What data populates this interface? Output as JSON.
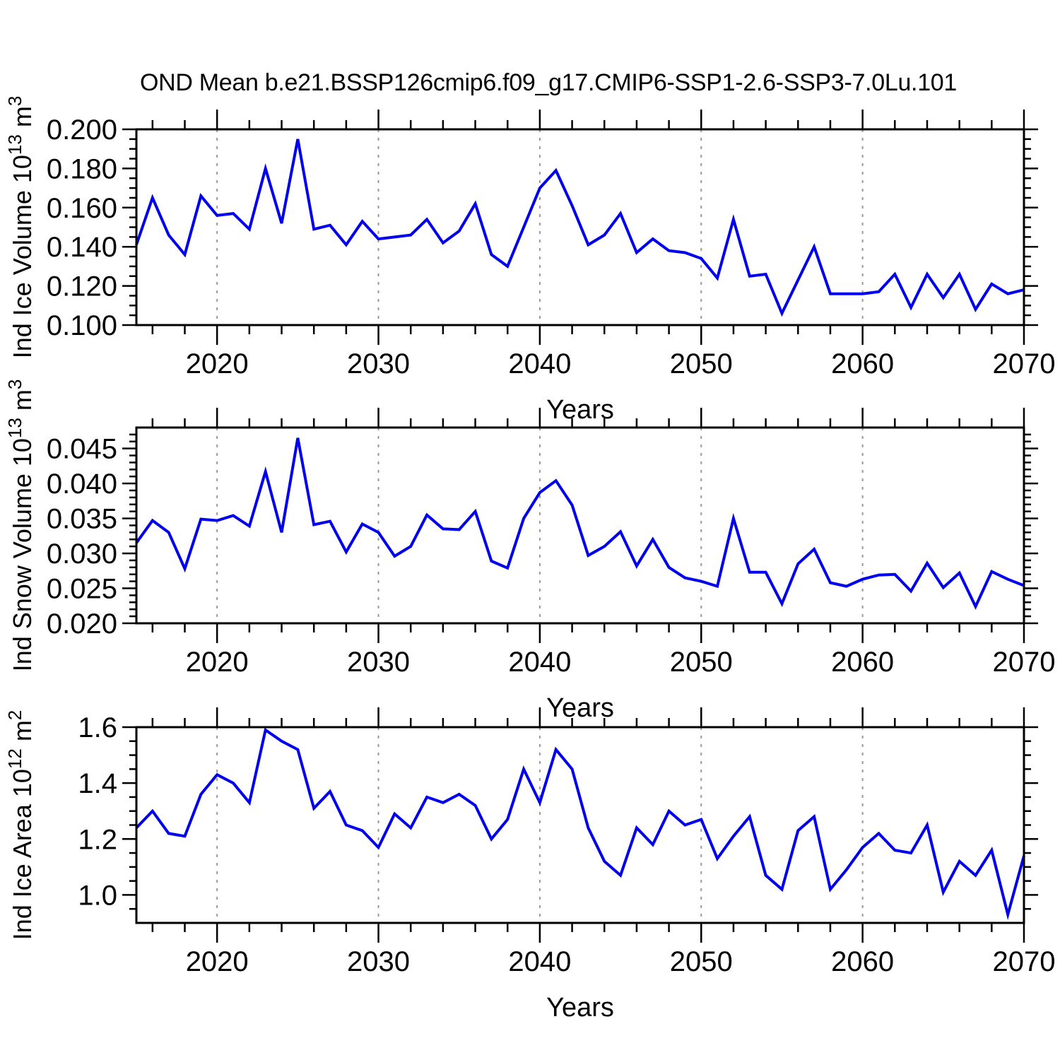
{
  "title": "OND Mean b.e21.BSSP126cmip6.f09_g17.CMIP6-SSP1-2.6-SSP3-7.0Lu.101",
  "colors": {
    "line": "#0000ee",
    "grid": "#999999",
    "axis": "#000000",
    "text": "#000000",
    "background": "#ffffff"
  },
  "x_axis": {
    "label": "Years",
    "min": 2015,
    "max": 2070,
    "major_ticks": [
      2020,
      2030,
      2040,
      2050,
      2060,
      2070
    ],
    "major_tick_labels": [
      "2020",
      "2030",
      "2040",
      "2050",
      "2060",
      "2070"
    ],
    "minor_step": 2,
    "gridline_years": [
      2020,
      2030,
      2040,
      2050,
      2060
    ],
    "years": [
      2015,
      2016,
      2017,
      2018,
      2019,
      2020,
      2021,
      2022,
      2023,
      2024,
      2025,
      2026,
      2027,
      2028,
      2029,
      2030,
      2031,
      2032,
      2033,
      2034,
      2035,
      2036,
      2037,
      2038,
      2039,
      2040,
      2041,
      2042,
      2043,
      2044,
      2045,
      2046,
      2047,
      2048,
      2049,
      2050,
      2051,
      2052,
      2053,
      2054,
      2055,
      2056,
      2057,
      2058,
      2059,
      2060,
      2061,
      2062,
      2063,
      2064,
      2065,
      2066,
      2067,
      2068,
      2069,
      2070
    ]
  },
  "chart_data": [
    {
      "type": "line",
      "name": "ind-ice-volume",
      "ylabel_segments": [
        {
          "t": "Ind Ice Volume 10"
        },
        {
          "t": "13",
          "sup": true
        },
        {
          "t": " m"
        },
        {
          "t": "3",
          "sup": true
        }
      ],
      "xlabel": "Years",
      "ylim": [
        0.1,
        0.2
      ],
      "ytick_values": [
        0.2,
        0.18,
        0.16,
        0.14,
        0.12,
        0.1
      ],
      "ytick_labels": [
        "0.200",
        "0.180",
        "0.160",
        "0.140",
        "0.120",
        "0.100"
      ],
      "yminor_step": 0.005,
      "grid": "dashed-vertical",
      "values": [
        0.141,
        0.165,
        0.146,
        0.136,
        0.166,
        0.156,
        0.157,
        0.149,
        0.18,
        0.152,
        0.195,
        0.149,
        0.151,
        0.141,
        0.153,
        0.144,
        0.145,
        0.146,
        0.154,
        0.142,
        0.148,
        0.162,
        0.136,
        0.13,
        0.15,
        0.17,
        0.179,
        0.161,
        0.141,
        0.146,
        0.157,
        0.137,
        0.144,
        0.138,
        0.137,
        0.134,
        0.124,
        0.154,
        0.125,
        0.126,
        0.106,
        0.123,
        0.14,
        0.116,
        0.116,
        0.116,
        0.117,
        0.126,
        0.109,
        0.126,
        0.114,
        0.126,
        0.108,
        0.121,
        0.116,
        0.118
      ]
    },
    {
      "type": "line",
      "name": "ind-snow-volume",
      "ylabel_segments": [
        {
          "t": "Ind Snow Volume 10"
        },
        {
          "t": "13",
          "sup": true
        },
        {
          "t": " m"
        },
        {
          "t": "3",
          "sup": true
        }
      ],
      "xlabel": "Years",
      "ylim": [
        0.02,
        0.048
      ],
      "ytick_values": [
        0.045,
        0.04,
        0.035,
        0.03,
        0.025,
        0.02
      ],
      "ytick_labels": [
        "0.045",
        "0.040",
        "0.035",
        "0.030",
        "0.025",
        "0.020"
      ],
      "yminor_step": 0.001,
      "grid": "dashed-vertical",
      "values": [
        0.0315,
        0.0347,
        0.033,
        0.0278,
        0.0349,
        0.0347,
        0.0354,
        0.0339,
        0.0417,
        0.033,
        0.0465,
        0.0341,
        0.0346,
        0.0302,
        0.0342,
        0.033,
        0.0296,
        0.031,
        0.0355,
        0.0335,
        0.0334,
        0.036,
        0.0289,
        0.0279,
        0.035,
        0.0387,
        0.0404,
        0.0369,
        0.0297,
        0.031,
        0.0331,
        0.0282,
        0.032,
        0.028,
        0.0265,
        0.026,
        0.0253,
        0.035,
        0.0273,
        0.0273,
        0.0228,
        0.0285,
        0.0306,
        0.0258,
        0.0253,
        0.0263,
        0.0269,
        0.027,
        0.0246,
        0.0286,
        0.0251,
        0.0272,
        0.0224,
        0.0274,
        0.0263,
        0.0254
      ]
    },
    {
      "type": "line",
      "name": "ind-ice-area",
      "ylabel_segments": [
        {
          "t": "Ind Ice Area 10"
        },
        {
          "t": "12",
          "sup": true
        },
        {
          "t": " m"
        },
        {
          "t": "2",
          "sup": true
        }
      ],
      "xlabel": "Years",
      "ylim": [
        0.9,
        1.6
      ],
      "ytick_values": [
        1.6,
        1.4,
        1.2,
        1.0
      ],
      "ytick_labels": [
        "1.6",
        "1.4",
        "1.2",
        "1.0"
      ],
      "yminor_step": 0.05,
      "grid": "dashed-vertical",
      "values": [
        1.24,
        1.3,
        1.22,
        1.21,
        1.36,
        1.43,
        1.4,
        1.33,
        1.59,
        1.55,
        1.52,
        1.31,
        1.37,
        1.25,
        1.23,
        1.17,
        1.29,
        1.24,
        1.35,
        1.33,
        1.36,
        1.32,
        1.2,
        1.27,
        1.45,
        1.33,
        1.52,
        1.45,
        1.24,
        1.12,
        1.07,
        1.24,
        1.18,
        1.3,
        1.25,
        1.27,
        1.13,
        1.21,
        1.28,
        1.07,
        1.02,
        1.23,
        1.28,
        1.02,
        1.09,
        1.17,
        1.22,
        1.16,
        1.15,
        1.25,
        1.01,
        1.12,
        1.07,
        1.16,
        0.93,
        1.14
      ]
    }
  ]
}
